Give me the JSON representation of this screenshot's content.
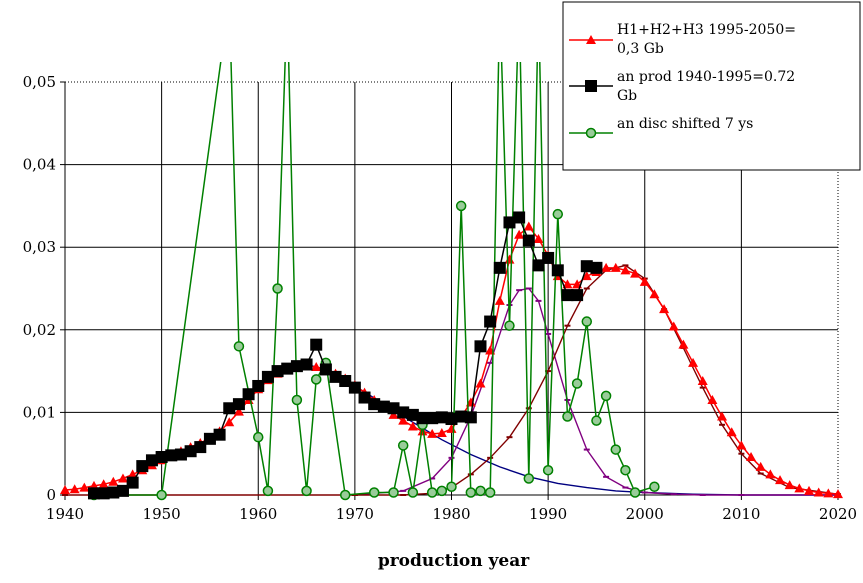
{
  "chart_data": {
    "type": "line",
    "xlabel": "production year",
    "ylabel": "",
    "xlim": [
      1940,
      2020
    ],
    "ylim": [
      0,
      0.05
    ],
    "x_ticks": [
      1940,
      1950,
      1960,
      1970,
      1980,
      1990,
      2000,
      2010,
      2020
    ],
    "y_ticks": [
      0,
      0.01,
      0.02,
      0.03,
      0.04,
      0.05
    ],
    "y_tick_labels": [
      "0",
      "0,01",
      "0,02",
      "0,03",
      "0,04",
      "0,05"
    ],
    "grid": true,
    "legend_position": "top-right",
    "legend": [
      {
        "line1": "H1+H2+H3 1995-2050=",
        "line2": "0,3 Gb"
      },
      {
        "line1": "an prod 1940-1995=0.72",
        "line2": "Gb"
      },
      {
        "line1": "an disc shifted 7 ys",
        "line2": ""
      }
    ],
    "colors": {
      "red": "#ff0000",
      "black": "#000000",
      "green": "#008000",
      "navy": "#000080",
      "purple": "#800080",
      "darkred": "#800000"
    },
    "series": [
      {
        "name": "H1+H2+H3 1995-2050=0,3 Gb",
        "color": "#ff0000",
        "marker": "triangle",
        "x": [
          1940,
          1941,
          1942,
          1943,
          1944,
          1945,
          1946,
          1947,
          1948,
          1949,
          1950,
          1951,
          1952,
          1953,
          1954,
          1955,
          1956,
          1957,
          1958,
          1959,
          1960,
          1961,
          1962,
          1963,
          1964,
          1965,
          1966,
          1967,
          1968,
          1969,
          1970,
          1971,
          1972,
          1973,
          1974,
          1975,
          1976,
          1977,
          1978,
          1979,
          1980,
          1981,
          1982,
          1983,
          1984,
          1985,
          1986,
          1987,
          1988,
          1989,
          1990,
          1991,
          1992,
          1993,
          1994,
          1995,
          1996,
          1997,
          1998,
          1999,
          2000,
          2001,
          2002,
          2003,
          2004,
          2005,
          2006,
          2007,
          2008,
          2009,
          2010,
          2011,
          2012,
          2013,
          2014,
          2015,
          2016,
          2017,
          2018,
          2019,
          2020
        ],
        "y": [
          0.0006,
          0.0007,
          0.0009,
          0.0011,
          0.0013,
          0.0016,
          0.002,
          0.0025,
          0.003,
          0.0036,
          0.0042,
          0.0048,
          0.0053,
          0.0058,
          0.0063,
          0.0069,
          0.0077,
          0.0088,
          0.0101,
          0.0115,
          0.0128,
          0.0139,
          0.0147,
          0.0152,
          0.0155,
          0.0156,
          0.0155,
          0.0152,
          0.0147,
          0.0141,
          0.0133,
          0.0124,
          0.0115,
          0.0106,
          0.0097,
          0.009,
          0.0083,
          0.0077,
          0.0074,
          0.0075,
          0.008,
          0.0095,
          0.0112,
          0.0135,
          0.0175,
          0.0235,
          0.0285,
          0.0315,
          0.0325,
          0.031,
          0.029,
          0.0265,
          0.0255,
          0.0255,
          0.0265,
          0.027,
          0.0275,
          0.0275,
          0.0272,
          0.0268,
          0.0258,
          0.0243,
          0.0225,
          0.0204,
          0.0182,
          0.016,
          0.0138,
          0.0115,
          0.0095,
          0.0076,
          0.006,
          0.0046,
          0.0034,
          0.0025,
          0.0018,
          0.0012,
          0.0008,
          0.0005,
          0.0003,
          0.0002,
          0.0001
        ]
      },
      {
        "name": "an prod 1940-1995=0.72 Gb",
        "color": "#000000",
        "marker": "square",
        "x": [
          1943,
          1944,
          1945,
          1946,
          1947,
          1948,
          1949,
          1950,
          1951,
          1952,
          1953,
          1954,
          1955,
          1956,
          1957,
          1958,
          1959,
          1960,
          1961,
          1962,
          1963,
          1964,
          1965,
          1966,
          1967,
          1968,
          1969,
          1970,
          1971,
          1972,
          1973,
          1974,
          1975,
          1976,
          1977,
          1978,
          1979,
          1980,
          1981,
          1982,
          1983,
          1984,
          1985,
          1986,
          1987,
          1988,
          1989,
          1990,
          1991,
          1992,
          1993,
          1994,
          1995
        ],
        "y": [
          0.0002,
          0.0002,
          0.0003,
          0.0005,
          0.0015,
          0.0035,
          0.0042,
          0.0046,
          0.0048,
          0.0049,
          0.0053,
          0.0058,
          0.0068,
          0.0073,
          0.0105,
          0.011,
          0.0122,
          0.0132,
          0.0143,
          0.015,
          0.0153,
          0.0156,
          0.0158,
          0.0182,
          0.0152,
          0.0143,
          0.0138,
          0.013,
          0.0118,
          0.011,
          0.0107,
          0.0105,
          0.01,
          0.0097,
          0.0093,
          0.0093,
          0.0094,
          0.0092,
          0.0095,
          0.0094,
          0.018,
          0.021,
          0.0275,
          0.033,
          0.0336,
          0.0308,
          0.0278,
          0.0287,
          0.0272,
          0.0242,
          0.0242,
          0.0277,
          0.0275
        ]
      },
      {
        "name": "an disc shifted 7 ys",
        "color": "#008000",
        "marker": "circle",
        "x": [
          1943,
          1950,
          1957,
          1958,
          1960,
          1961,
          1962,
          1963,
          1964,
          1965,
          1966,
          1967,
          1969,
          1972,
          1974,
          1975,
          1976,
          1977,
          1978,
          1979,
          1980,
          1981,
          1982,
          1983,
          1984,
          1985,
          1986,
          1987,
          1988,
          1989,
          1990,
          1991,
          1992,
          1993,
          1994,
          1995,
          1996,
          1997,
          1998,
          1999,
          2001
        ],
        "y": [
          0,
          0,
          0.06,
          0.018,
          0.007,
          0.0005,
          0.025,
          0.06,
          0.0115,
          0.0005,
          0.014,
          0.016,
          0,
          0.0003,
          0.0003,
          0.006,
          0.0003,
          0.0085,
          0.0003,
          0.0005,
          0.001,
          0.035,
          0.0003,
          0.0005,
          0.0003,
          0.06,
          0.0205,
          0.06,
          0.002,
          0.06,
          0.003,
          0.034,
          0.0095,
          0.0135,
          0.021,
          0.009,
          0.012,
          0.0055,
          0.003,
          0.0003,
          0.001
        ]
      },
      {
        "name": "",
        "color": "#000080",
        "marker": "none",
        "x": [
          1965,
          1967,
          1970,
          1973,
          1976,
          1979,
          1982,
          1985,
          1988,
          1991,
          1994,
          1997,
          2000,
          2005,
          2010,
          2015,
          2020
        ],
        "y": [
          0.0158,
          0.0152,
          0.0132,
          0.011,
          0.0088,
          0.0067,
          0.0049,
          0.0034,
          0.0022,
          0.0014,
          0.0009,
          0.0005,
          0.0003,
          0.0001,
          0,
          0,
          0
        ]
      },
      {
        "name": "",
        "color": "#800080",
        "marker": "dash",
        "x": [
          1970,
          1975,
          1978,
          1980,
          1982,
          1984,
          1986,
          1987,
          1988,
          1989,
          1990,
          1992,
          1994,
          1996,
          1998,
          2000,
          2003,
          2006,
          2010,
          2020
        ],
        "y": [
          0,
          0.0005,
          0.002,
          0.0045,
          0.0095,
          0.016,
          0.023,
          0.0248,
          0.025,
          0.0235,
          0.0195,
          0.0115,
          0.0055,
          0.0022,
          0.0009,
          0.0003,
          0.0001,
          0,
          0,
          0
        ]
      },
      {
        "name": "",
        "color": "#800000",
        "marker": "dash",
        "x": [
          1940,
          1970,
          1975,
          1978,
          1980,
          1982,
          1984,
          1986,
          1988,
          1990,
          1992,
          1994,
          1996,
          1998,
          2000,
          2002,
          2004,
          2006,
          2008,
          2010,
          2012,
          2015,
          2020
        ],
        "y": [
          0,
          0,
          0,
          0.0002,
          0.0009,
          0.0025,
          0.0045,
          0.007,
          0.0105,
          0.015,
          0.0205,
          0.025,
          0.0272,
          0.0278,
          0.0262,
          0.0225,
          0.0178,
          0.013,
          0.0085,
          0.005,
          0.0026,
          0.0009,
          0.0001
        ]
      }
    ]
  }
}
